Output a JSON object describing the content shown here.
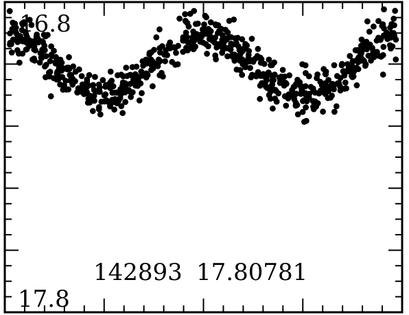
{
  "chart_data": {
    "type": "scatter",
    "title": "",
    "xlabel": "",
    "ylabel": "",
    "y_axis_inverted": true,
    "ylim": [
      16.8,
      17.8
    ],
    "xlim": [
      0,
      1
    ],
    "tick_labels": {
      "y_top": "16.8",
      "y_bottom": "17.8"
    },
    "annotation": {
      "id": "142893",
      "period": "17.80781"
    },
    "grid": false,
    "legend": "none",
    "marker_color": "#000000",
    "model": {
      "description_of_shape": "two sinusoidal cycles across the phase range with scatter",
      "mean": 17.0,
      "amplitude": 0.1,
      "cycles": 2,
      "phase_at_max_brightness": 0.5,
      "scatter": 0.035,
      "n_points": 700
    },
    "series": [
      {
        "values_sample": [
          [
            0.0,
            16.94
          ],
          [
            0.05,
            16.97
          ],
          [
            0.1,
            17.0
          ],
          [
            0.15,
            17.04
          ],
          [
            0.2,
            17.08
          ],
          [
            0.25,
            17.06
          ],
          [
            0.3,
            17.03
          ],
          [
            0.35,
            16.98
          ],
          [
            0.4,
            16.95
          ],
          [
            0.45,
            16.93
          ],
          [
            0.5,
            16.92
          ],
          [
            0.55,
            16.95
          ],
          [
            0.6,
            16.98
          ],
          [
            0.65,
            17.03
          ],
          [
            0.7,
            17.06
          ],
          [
            0.75,
            17.08
          ],
          [
            0.8,
            17.05
          ],
          [
            0.85,
            17.02
          ],
          [
            0.9,
            16.98
          ],
          [
            0.95,
            16.95
          ],
          [
            1.0,
            16.93
          ]
        ]
      }
    ]
  }
}
